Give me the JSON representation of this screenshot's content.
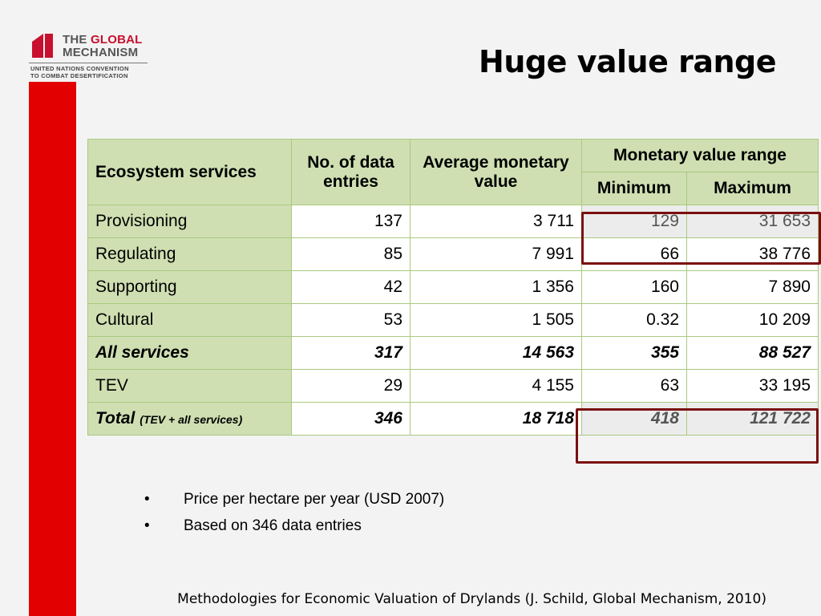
{
  "logo": {
    "line1_a": "THE ",
    "line1_b": "GLOBAL",
    "line2": "MECHANISM",
    "sub1": "UNITED NATIONS CONVENTION",
    "sub2": "TO COMBAT DESERTIFICATION",
    "mark_color": "#c8102e"
  },
  "title": "Huge value range",
  "table": {
    "header": {
      "services": "Ecosystem services",
      "entries": "No. of data entries",
      "average": "Average monetary value",
      "range": "Monetary value range",
      "min": "Minimum",
      "max": "Maximum"
    },
    "rows": [
      {
        "label": "Provisioning",
        "entries": "137",
        "average": "3 711",
        "min": "129",
        "max": "31 653"
      },
      {
        "label": "Regulating",
        "entries": "85",
        "average": "7 991",
        "min": "66",
        "max": "38 776"
      },
      {
        "label": "Supporting",
        "entries": "42",
        "average": "1 356",
        "min": "160",
        "max": "7 890"
      },
      {
        "label": "Cultural",
        "entries": "53",
        "average": "1 505",
        "min": "0.32",
        "max": "10 209"
      },
      {
        "label": "All services",
        "entries": "317",
        "average": "14 563",
        "min": "355",
        "max": "88 527"
      },
      {
        "label": "TEV",
        "entries": "29",
        "average": "4 155",
        "min": "63",
        "max": "33 195"
      },
      {
        "label": "Total",
        "label_note": "(TEV + all services)",
        "entries": "346",
        "average": "18 718",
        "min": "418",
        "max": "121 722"
      }
    ]
  },
  "bullets": [
    "Price per hectare per year (USD 2007)",
    "Based on 346 data entries"
  ],
  "footer": "Methodologies for Economic Valuation of Drylands (J. Schild, Global Mechanism, 2010)",
  "colors": {
    "accent_red": "#e20000",
    "header_green": "#cfdfb2",
    "highlight_border": "#7a0f0f"
  }
}
